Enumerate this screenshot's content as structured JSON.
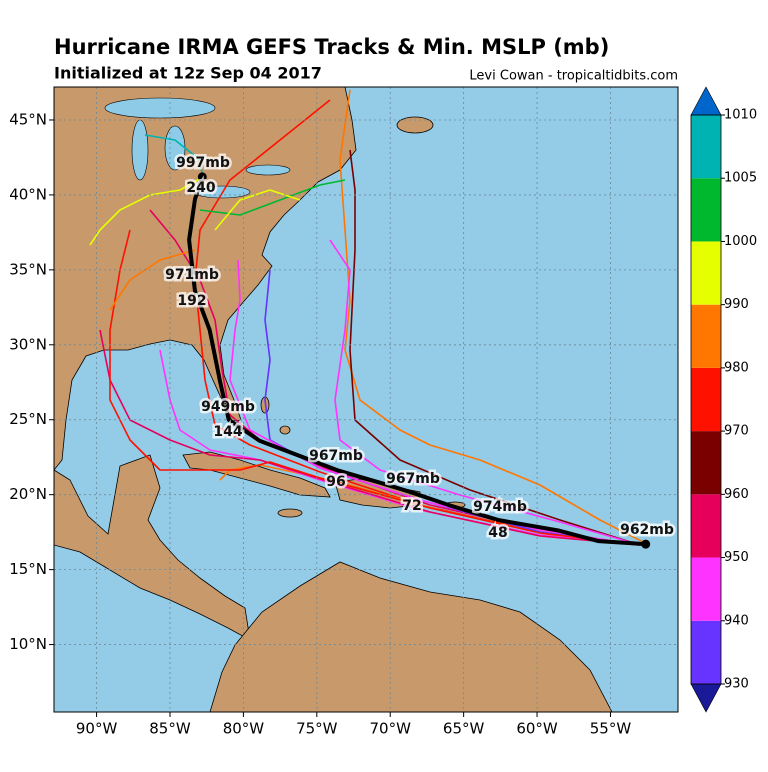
{
  "chart_data": {
    "type": "track-map",
    "title": "Hurricane IRMA GEFS Tracks & Min. MSLP (mb)",
    "subtitle": "Initialized at 12z Sep 04 2017",
    "credit": "Levi Cowan - tropicaltidbits.com",
    "xlim": [
      -92.9,
      -50.4
    ],
    "ylim": [
      5.5,
      47.2
    ],
    "xticks": [
      {
        "value": -90,
        "label": "90°W"
      },
      {
        "value": -85,
        "label": "85°W"
      },
      {
        "value": -80,
        "label": "80°W"
      },
      {
        "value": -75,
        "label": "75°W"
      },
      {
        "value": -70,
        "label": "70°W"
      },
      {
        "value": -65,
        "label": "65°W"
      },
      {
        "value": -60,
        "label": "60°W"
      },
      {
        "value": -55,
        "label": "55°W"
      }
    ],
    "yticks": [
      {
        "value": 10,
        "label": "10°N"
      },
      {
        "value": 15,
        "label": "15°N"
      },
      {
        "value": 20,
        "label": "20°N"
      },
      {
        "value": 25,
        "label": "25°N"
      },
      {
        "value": 30,
        "label": "30°N"
      },
      {
        "value": 35,
        "label": "35°N"
      },
      {
        "value": 40,
        "label": "40°N"
      },
      {
        "value": 45,
        "label": "45°N"
      }
    ],
    "grid": true,
    "mean_track": {
      "color": "#000000",
      "x": [
        -52.6,
        -55.8,
        -58.5,
        -62.6,
        -66.0,
        -68.7,
        -70.7,
        -73.5,
        -76.2,
        -78.9,
        -81.0,
        -81.6,
        -82.3,
        -83.3,
        -83.7,
        -83.3,
        -82.8
      ],
      "y": [
        16.7,
        16.9,
        17.6,
        18.3,
        19.3,
        20.2,
        20.8,
        21.6,
        22.6,
        23.6,
        25.0,
        27.6,
        31.0,
        33.6,
        37.0,
        39.7,
        41.2
      ]
    },
    "annotations": [
      "962mb",
      "974mb",
      "48",
      "967mb",
      "72",
      "967mb",
      "96",
      "949mb",
      "144",
      "971mb",
      "192",
      "997mb",
      "240"
    ],
    "colorbar": {
      "levels": [
        930,
        940,
        950,
        960,
        970,
        980,
        990,
        1000,
        1005,
        1010
      ],
      "colors": [
        "#6633ff",
        "#ff33ff",
        "#e6005c",
        "#7a0000",
        "#ff1100",
        "#ff7700",
        "#e6ff00",
        "#00b82e",
        "#00b3b3"
      ],
      "under_color": "#1a1a99",
      "over_color": "#0066cc"
    }
  }
}
